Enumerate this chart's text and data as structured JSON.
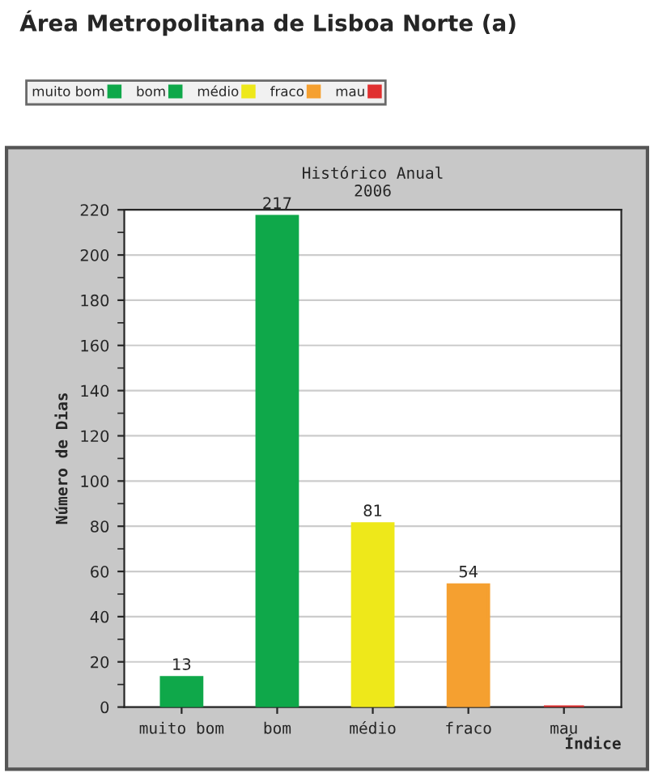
{
  "chart_data": {
    "type": "bar",
    "title": "Área Metropolitana de Lisboa Norte (a)",
    "subtitle": "Histórico Anual\n2006",
    "xlabel": "Índice",
    "ylabel": "Número de Dias",
    "categories": [
      "muito bom",
      "bom",
      "médio",
      "fraco",
      "mau"
    ],
    "series": [
      {
        "name": "muito bom",
        "color": "#0fa84a",
        "values": [
          13,
          null,
          null,
          null,
          null
        ],
        "value_labels": [
          "13",
          null,
          null,
          null,
          null
        ]
      },
      {
        "name": "bom",
        "color": "#0fa84a",
        "values": [
          null,
          217,
          null,
          null,
          null
        ],
        "value_labels": [
          null,
          "217",
          null,
          null,
          null
        ]
      },
      {
        "name": "médio",
        "color": "#eee81a",
        "values": [
          null,
          null,
          81,
          null,
          null
        ],
        "value_labels": [
          null,
          null,
          "81",
          null,
          null
        ]
      },
      {
        "name": "fraco",
        "color": "#f5a030",
        "values": [
          null,
          null,
          null,
          54,
          null
        ],
        "value_labels": [
          null,
          null,
          null,
          "54",
          null
        ]
      },
      {
        "name": "mau",
        "color": "#e03030",
        "values": [
          null,
          null,
          null,
          null,
          0
        ],
        "value_labels": [
          null,
          null,
          null,
          null,
          null
        ]
      }
    ],
    "ylim": [
      0,
      220
    ],
    "yticks": [
      0,
      20,
      40,
      60,
      80,
      100,
      120,
      140,
      160,
      180,
      200,
      220
    ],
    "grid": "y",
    "legend": "top"
  }
}
